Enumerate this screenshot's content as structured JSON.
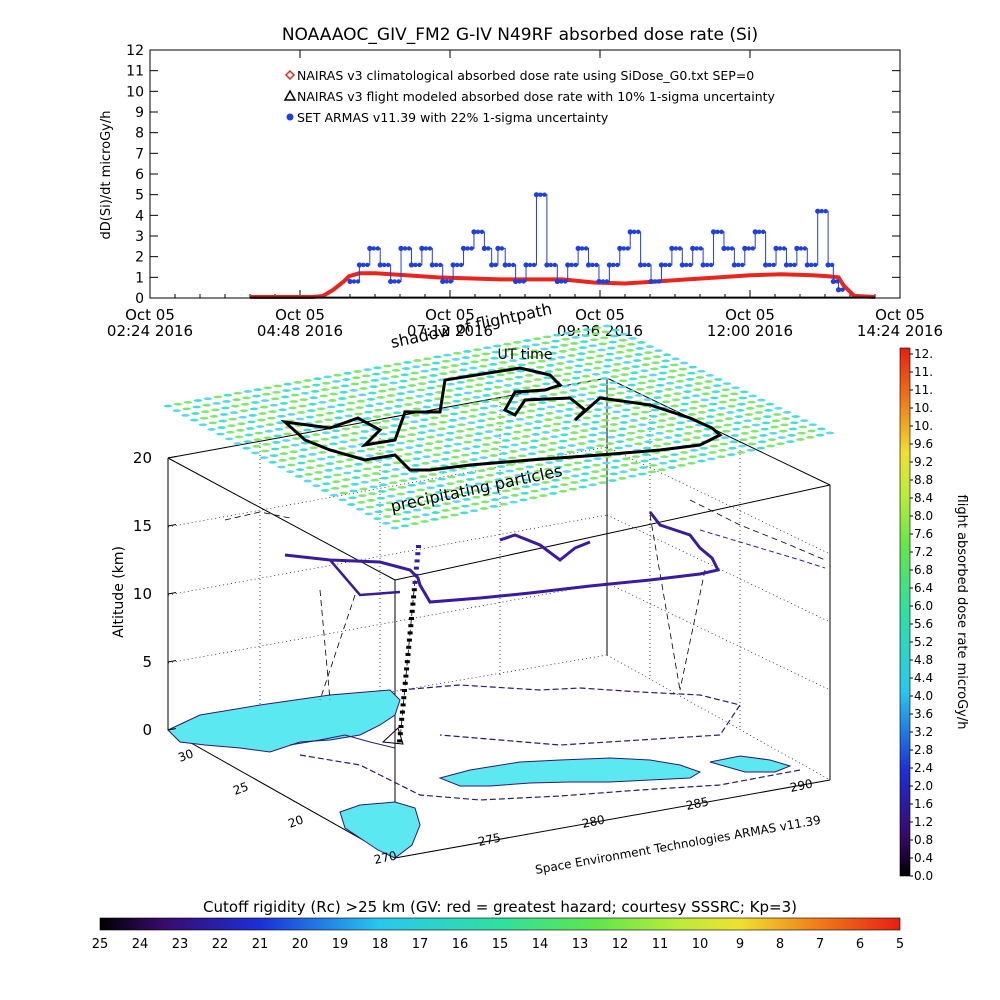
{
  "title": "NOAAAOC_GIV_FM2 G-IV    N49RF  absorbed dose rate (Si)",
  "chart_data": [
    {
      "type": "line",
      "ylabel": "dD(Si)/dt microGy/h",
      "xlabel": "UT time",
      "ylim": [
        0,
        12
      ],
      "yticks": [
        "0",
        "1",
        "2",
        "3",
        "4",
        "5",
        "6",
        "7",
        "8",
        "9",
        "10",
        "11",
        "12"
      ],
      "xticks": [
        {
          "line1": "Oct 05",
          "line2": "02:24 2016"
        },
        {
          "line1": "Oct 05",
          "line2": "04:48 2016"
        },
        {
          "line1": "Oct 05",
          "line2": "07:12 2016"
        },
        {
          "line1": "Oct 05",
          "line2": "09:36 2016"
        },
        {
          "line1": "Oct 05",
          "line2": "12:00 2016"
        },
        {
          "line1": "Oct 05",
          "line2": "14:24 2016"
        }
      ],
      "legend": [
        {
          "label": "NAIRAS v3 climatological absorbed dose rate using SiDose_G0.txt SEP=0",
          "marker": "diamond",
          "color": "#e8251f"
        },
        {
          "label": "NAIRAS v3 flight modeled absorbed dose rate with 10% 1-sigma uncertainty",
          "marker": "triangle",
          "color": "#000000"
        },
        {
          "label": "SET ARMAS v11.39 with 22% 1-sigma uncertainty",
          "marker": "dot",
          "color": "#1f3fe0"
        }
      ],
      "series": [
        {
          "name": "NAIRAS v3 climatological absorbed dose rate using SiDose_G0.txt SEP=0",
          "color": "#e8251f",
          "x": [
            "04:00",
            "04:30",
            "05:00",
            "05:10",
            "05:20",
            "05:30",
            "05:35",
            "05:45",
            "06:00",
            "06:30",
            "07:00",
            "07:30",
            "08:00",
            "08:30",
            "09:00",
            "09:30",
            "10:00",
            "10:30",
            "11:00",
            "11:30",
            "12:00",
            "12:30",
            "13:00",
            "13:15",
            "13:25",
            "13:30",
            "13:40",
            "14:00"
          ],
          "y": [
            0.05,
            0.05,
            0.05,
            0.1,
            0.4,
            0.8,
            1.05,
            1.2,
            1.2,
            1.1,
            1.0,
            0.95,
            0.9,
            0.9,
            0.9,
            0.75,
            0.7,
            0.8,
            0.9,
            1.0,
            1.1,
            1.15,
            1.1,
            1.05,
            1.0,
            0.6,
            0.1,
            0.05
          ]
        },
        {
          "name": "NAIRAS v3 flight modeled absorbed dose rate with 10% 1-sigma uncertainty",
          "color": "#000000",
          "x": [
            "04:00",
            "05:00",
            "06:00",
            "07:00",
            "08:00",
            "09:00",
            "10:00",
            "11:00",
            "12:00",
            "13:00",
            "14:00"
          ],
          "y": [
            0.02,
            0.02,
            0.02,
            0.02,
            0.02,
            0.02,
            0.02,
            0.02,
            0.02,
            0.02,
            0.02
          ]
        },
        {
          "name": "SET ARMAS v11.39 with 22% 1-sigma uncertainty",
          "color": "#1f3fe0",
          "x": [
            "05:36",
            "05:45",
            "05:55",
            "06:05",
            "06:15",
            "06:25",
            "06:35",
            "06:45",
            "06:55",
            "07:05",
            "07:15",
            "07:25",
            "07:35",
            "07:45",
            "07:52",
            "07:58",
            "08:05",
            "08:15",
            "08:25",
            "08:35",
            "08:45",
            "08:55",
            "09:05",
            "09:15",
            "09:25",
            "09:35",
            "09:45",
            "09:55",
            "10:05",
            "10:15",
            "10:25",
            "10:35",
            "10:45",
            "10:55",
            "11:05",
            "11:15",
            "11:25",
            "11:35",
            "11:45",
            "11:55",
            "12:05",
            "12:15",
            "12:25",
            "12:35",
            "12:45",
            "12:55",
            "13:05",
            "13:15",
            "13:20",
            "13:25"
          ],
          "y": [
            0.8,
            1.6,
            2.4,
            1.6,
            0.8,
            2.4,
            1.6,
            2.4,
            1.6,
            0.8,
            1.6,
            2.4,
            3.2,
            2.4,
            1.6,
            2.4,
            1.6,
            0.8,
            1.6,
            5.0,
            1.6,
            0.8,
            1.6,
            2.4,
            1.6,
            0.8,
            1.6,
            2.4,
            3.2,
            1.6,
            0.8,
            1.6,
            2.4,
            1.6,
            2.4,
            1.6,
            3.2,
            2.4,
            1.6,
            2.4,
            3.2,
            1.6,
            2.4,
            1.6,
            2.4,
            1.6,
            4.2,
            1.6,
            0.8,
            0.4
          ]
        }
      ]
    },
    {
      "type": "scatter",
      "zlabel": "Altitude (km)",
      "zticks": [
        "0",
        "5",
        "10",
        "15",
        "20"
      ],
      "lat_ticks": [
        "30",
        "25",
        "20"
      ],
      "lon_ticks": [
        "270",
        "275",
        "280",
        "285",
        "290"
      ],
      "annotations": [
        "shadow of flightpath",
        "UT time",
        "precipitating particles",
        "Space Environment Technologies ARMAS v11.39"
      ],
      "colorbar_right": {
        "label": "flight absorbed dose rate microGy/h",
        "ticks": [
          "12.",
          "11.",
          "11.",
          "10.",
          "10.",
          "9.6",
          "9.2",
          "8.8",
          "8.4",
          "8.0",
          "7.6",
          "7.2",
          "6.8",
          "6.4",
          "6.0",
          "5.6",
          "5.2",
          "4.8",
          "4.4",
          "4.0",
          "3.6",
          "3.2",
          "2.8",
          "2.4",
          "2.0",
          "1.6",
          "1.2",
          "0.8",
          "0.4",
          "0.0"
        ]
      },
      "colorbar_bottom": {
        "label": "Cutoff rigidity (Rc) >25 km (GV: red = greatest hazard; courtesy SSSRC; Kp=3)",
        "ticks": [
          "25",
          "24",
          "23",
          "22",
          "21",
          "20",
          "19",
          "18",
          "17",
          "16",
          "15",
          "14",
          "13",
          "12",
          "11",
          "10",
          "9",
          "8",
          "7",
          "6",
          "5"
        ]
      }
    }
  ],
  "colors": {
    "red": "#e8251f",
    "blue": "#1f3fe0",
    "black": "#000000",
    "cyan": "#5ce8f0",
    "green": "#7ee86a"
  }
}
